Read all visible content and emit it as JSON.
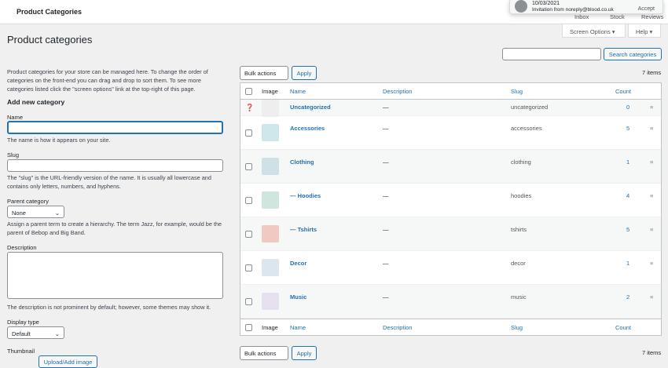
{
  "header": {
    "title": "Product Categories",
    "nav": [
      "Inbox",
      "Stock",
      "Reviews"
    ],
    "screen_options": "Screen Options ▾",
    "help": "Help ▾"
  },
  "notification": {
    "date": "10/03/2021",
    "message": "Invitation from noreply@blood.co.uk",
    "accept": "Accept"
  },
  "page_title": "Product categories",
  "form": {
    "intro": "Product categories for your store can be managed here. To change the order of categories on the front-end you can drag and drop to sort them. To see more categories listed click the \"screen options\" link at the top-right of this page.",
    "heading": "Add new category",
    "name_label": "Name",
    "name_value": "",
    "name_help": "The name is how it appears on your site.",
    "slug_label": "Slug",
    "slug_value": "",
    "slug_help": "The \"slug\" is the URL-friendly version of the name. It is usually all lowercase and contains only letters, numbers, and hyphens.",
    "parent_label": "Parent category",
    "parent_value": "None",
    "parent_help": "Assign a parent term to create a hierarchy. The term Jazz, for example, would be the parent of Bebop and Big Band.",
    "description_label": "Description",
    "description_value": "",
    "description_help": "The description is not prominent by default; however, some themes may show it.",
    "display_label": "Display type",
    "display_value": "Default",
    "thumbnail_label": "Thumbnail",
    "upload_label": "Upload/Add image"
  },
  "search": {
    "value": "",
    "button": "Search categories"
  },
  "bulk": {
    "label": "Bulk actions",
    "apply": "Apply",
    "count": "7 items"
  },
  "columns": [
    "Image",
    "Name",
    "Description",
    "Slug",
    "Count"
  ],
  "rows": [
    {
      "name": "Uncategorized",
      "description": "—",
      "slug": "uncategorized",
      "count": "0",
      "icon": "placeholder-image"
    },
    {
      "name": "Accessories",
      "description": "—",
      "slug": "accessories",
      "count": "5",
      "icon": "beanie-image"
    },
    {
      "name": "Clothing",
      "description": "—",
      "slug": "clothing",
      "count": "1",
      "icon": "clothing-image"
    },
    {
      "name": "— Hoodies",
      "description": "—",
      "slug": "hoodies",
      "count": "4",
      "icon": "hoodie-image"
    },
    {
      "name": "— Tshirts",
      "description": "—",
      "slug": "tshirts",
      "count": "5",
      "icon": "tshirt-image"
    },
    {
      "name": "Decor",
      "description": "—",
      "slug": "decor",
      "count": "1",
      "icon": "pennant-image"
    },
    {
      "name": "Music",
      "description": "—",
      "slug": "music",
      "count": "2",
      "icon": "album-image"
    }
  ]
}
